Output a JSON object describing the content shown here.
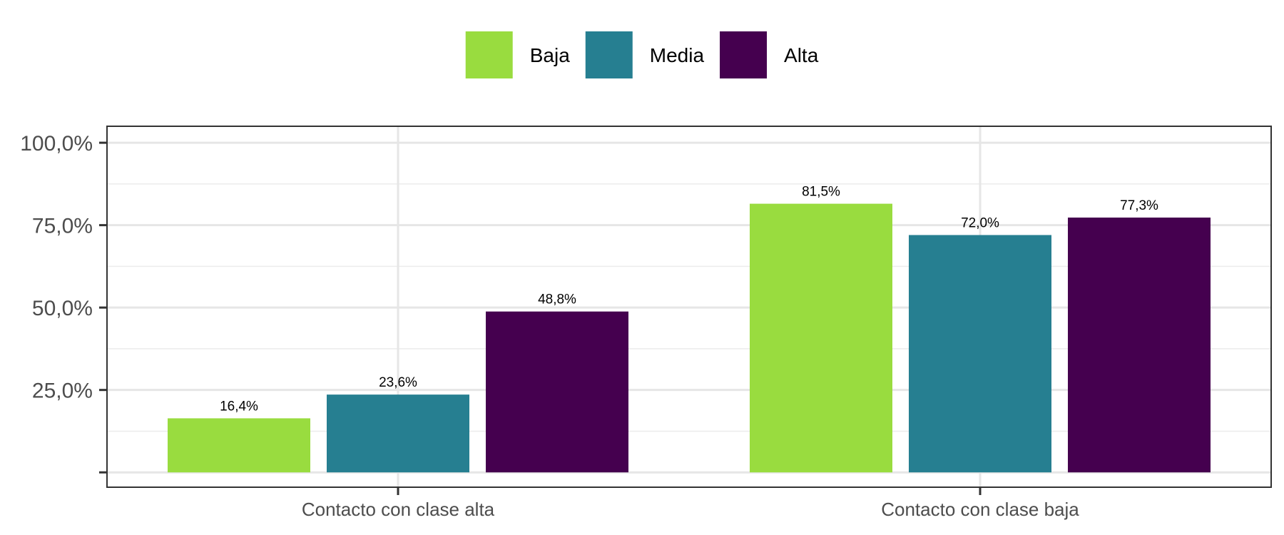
{
  "chart_data": {
    "type": "bar",
    "categories": [
      "Contacto con clase alta",
      "Contacto con clase baja"
    ],
    "series": [
      {
        "name": "Baja",
        "color": "#99dc3f",
        "values": [
          16.4,
          81.5
        ],
        "labels": [
          "16,4%",
          "81,5%"
        ]
      },
      {
        "name": "Media",
        "color": "#267f91",
        "values": [
          23.6,
          72.0
        ],
        "labels": [
          "23,6%",
          "72,0%"
        ]
      },
      {
        "name": "Alta",
        "color": "#45004f",
        "values": [
          48.8,
          77.3
        ],
        "labels": [
          "48,8%",
          "77,3%"
        ]
      }
    ],
    "yticks": [
      {
        "value": 0,
        "label": ""
      },
      {
        "value": 25,
        "label": "25,0%"
      },
      {
        "value": 50,
        "label": "50,0%"
      },
      {
        "value": 75,
        "label": "75,0%"
      },
      {
        "value": 100,
        "label": "100,0%"
      }
    ],
    "ylim": [
      -4.5,
      105
    ],
    "title": "",
    "xlabel": "",
    "ylabel": "",
    "grid": true,
    "legend_position": "top"
  }
}
